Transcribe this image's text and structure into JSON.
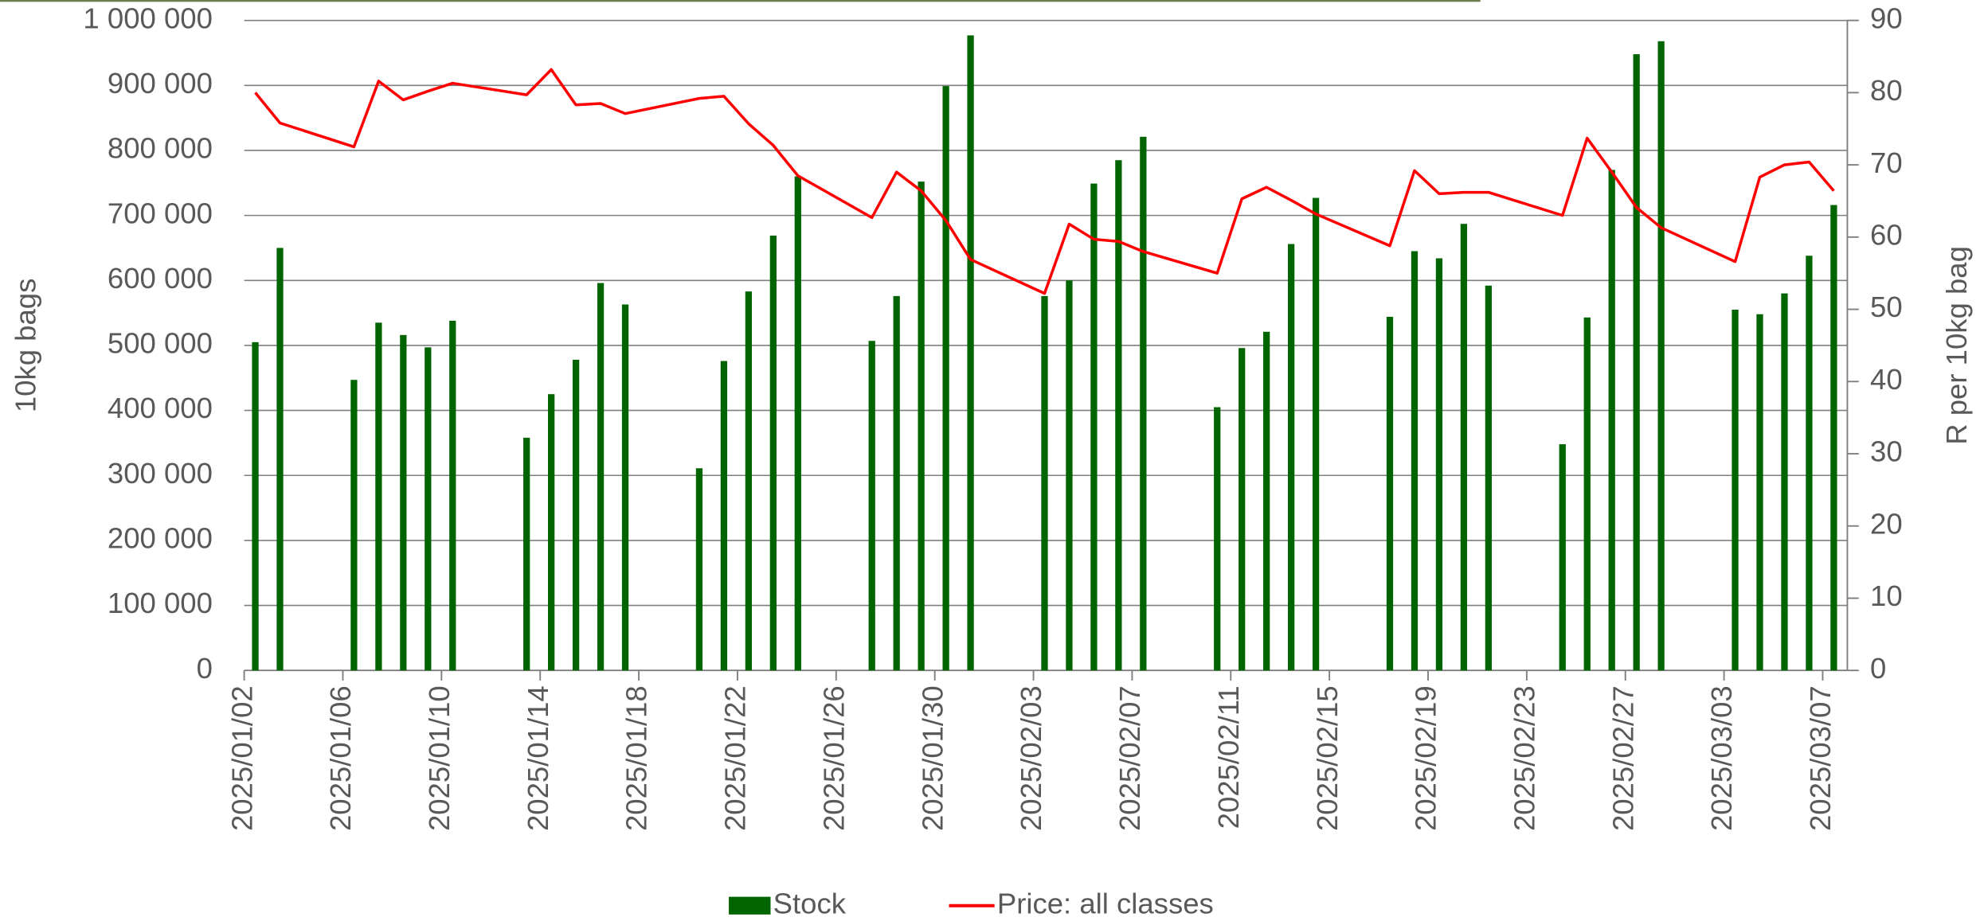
{
  "chart_data": {
    "type": "bar-line",
    "y_label": "10kg bags",
    "y2_label": "R per 10kg bag",
    "x": [
      "2025/01/02",
      "2025/01/03",
      "2025/01/06",
      "2025/01/07",
      "2025/01/08",
      "2025/01/09",
      "2025/01/10",
      "2025/01/13",
      "2025/01/14",
      "2025/01/15",
      "2025/01/16",
      "2025/01/17",
      "2025/01/20",
      "2025/01/21",
      "2025/01/22",
      "2025/01/23",
      "2025/01/24",
      "2025/01/27",
      "2025/01/28",
      "2025/01/29",
      "2025/01/30",
      "2025/01/31",
      "2025/02/03",
      "2025/02/04",
      "2025/02/05",
      "2025/02/06",
      "2025/02/07",
      "2025/02/10",
      "2025/02/11",
      "2025/02/12",
      "2025/02/13",
      "2025/02/14",
      "2025/02/17",
      "2025/02/18",
      "2025/02/19",
      "2025/02/20",
      "2025/02/21",
      "2025/02/24",
      "2025/02/25",
      "2025/02/26",
      "2025/02/27",
      "2025/02/28",
      "2025/03/03",
      "2025/03/04",
      "2025/03/05",
      "2025/03/06",
      "2025/03/07"
    ],
    "series": [
      {
        "name": "Stock",
        "type": "bar",
        "color": "#006400",
        "values": [
          505000,
          650000,
          447000,
          535000,
          516000,
          497000,
          538000,
          358000,
          425000,
          478000,
          596000,
          563000,
          311000,
          476000,
          583000,
          669000,
          760000,
          507000,
          576000,
          752000,
          899000,
          977000,
          576000,
          600000,
          749000,
          785000,
          821000,
          405000,
          496000,
          521000,
          656000,
          727000,
          544000,
          645000,
          634000,
          687000,
          592000,
          348000,
          543000,
          770000,
          948000,
          968000,
          555000,
          548000,
          580000,
          638000,
          716000
        ]
      },
      {
        "name": "Price: all classes",
        "type": "line",
        "axis": "y2",
        "color": "#ff0000",
        "values": [
          80.0,
          75.8,
          72.5,
          81.6,
          79.0,
          80.2,
          81.3,
          79.7,
          83.2,
          78.3,
          78.5,
          77.1,
          79.2,
          79.5,
          75.7,
          72.7,
          68.5,
          62.7,
          69.0,
          66.4,
          62.3,
          56.9,
          52.2,
          61.8,
          59.7,
          59.4,
          58.0,
          55.0,
          65.3,
          66.9,
          65.1,
          63.2,
          58.8,
          69.2,
          66.0,
          66.2,
          66.2,
          63.0,
          73.7,
          69.0,
          64.1,
          61.3,
          56.6,
          68.3,
          70.0,
          70.4,
          66.4
        ]
      }
    ],
    "xlim": [
      "2025/01/02",
      "2025/03/07"
    ],
    "xticks": [
      "2025/01/02",
      "2025/01/06",
      "2025/01/10",
      "2025/01/14",
      "2025/01/18",
      "2025/01/22",
      "2025/01/26",
      "2025/01/30",
      "2025/02/03",
      "2025/02/07",
      "2025/02/11",
      "2025/02/15",
      "2025/02/19",
      "2025/02/23",
      "2025/02/27",
      "2025/03/03",
      "2025/03/07"
    ],
    "ylim": [
      0,
      1000000
    ],
    "yticks": [
      0,
      {
        "value": 100000,
        "label": "100 000"
      },
      {
        "value": 200000,
        "label": "200 000"
      },
      {
        "value": 300000,
        "label": "300 000"
      },
      {
        "value": 400000,
        "label": "400 000"
      },
      {
        "value": 500000,
        "label": "500 000"
      },
      {
        "value": 600000,
        "label": "600 000"
      },
      {
        "value": 700000,
        "label": "700 000"
      },
      {
        "value": 800000,
        "label": "800 000"
      },
      {
        "value": 900000,
        "label": "900 000"
      },
      {
        "value": 1000000,
        "label": "1 000 000"
      }
    ],
    "y2lim": [
      0,
      90
    ],
    "y2ticks": [
      0,
      10,
      20,
      30,
      40,
      50,
      60,
      70,
      80,
      90
    ],
    "grid": true,
    "legend": "bottom"
  }
}
